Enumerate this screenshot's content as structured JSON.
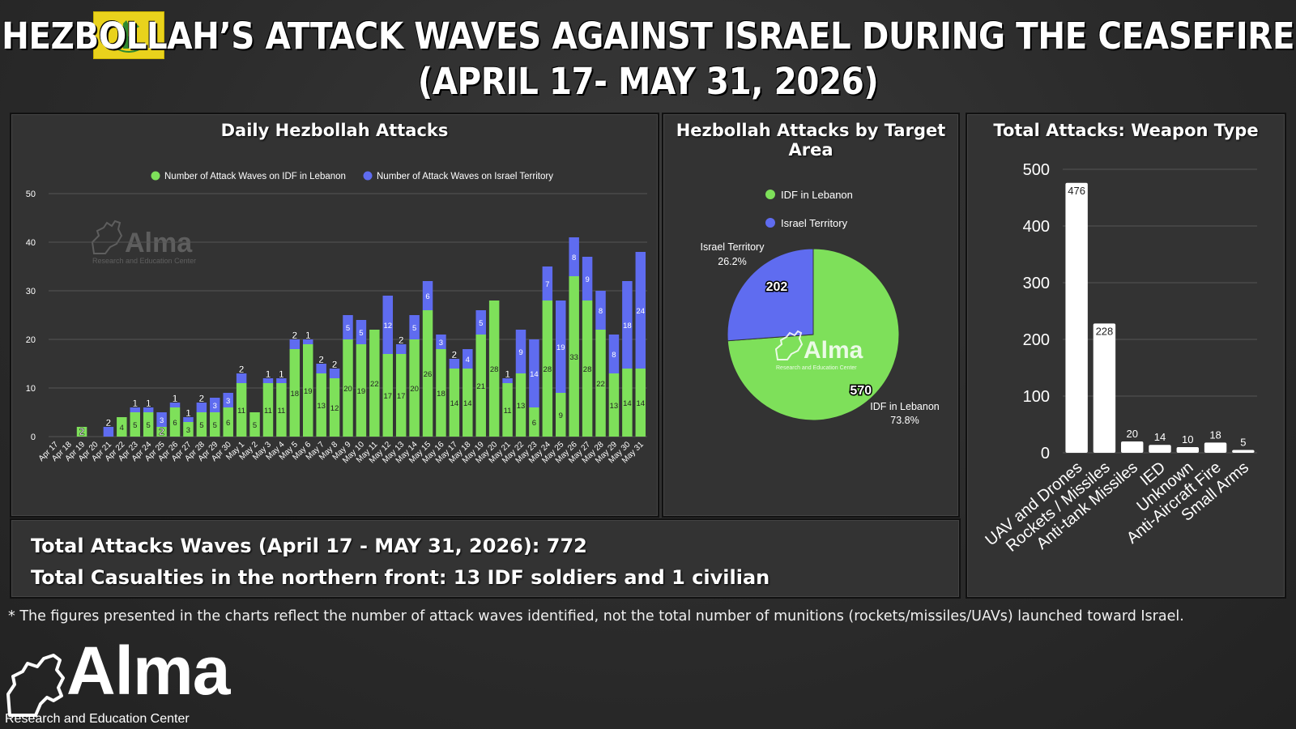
{
  "header": {
    "title_line1": "HEZBOLLAH’S ATTACK WAVES AGAINST ISRAEL DURING THE CEASEFIRE",
    "title_line2": "(APRIL 17- MAY 31, 2026)"
  },
  "colors": {
    "green": "#7ee05a",
    "blue": "#5f6cf0",
    "white": "#ffffff",
    "flag_yellow": "#e9d21c"
  },
  "panels": {
    "daily_title": "Daily Hezbollah Attacks",
    "target_title": "Hezbollah Attacks by Target Area",
    "weapon_title": "Total Attacks: Weapon Type"
  },
  "watermark": {
    "name": "Alma",
    "subtitle": "Research and Education Center"
  },
  "chart_data": [
    {
      "type": "bar",
      "title": "Daily Hezbollah Attacks",
      "stacked": true,
      "categories": [
        "Apr 17",
        "Apr 18",
        "Apr 19",
        "Apr 20",
        "Apr 21",
        "Apr 22",
        "Apr 23",
        "Apr 24",
        "Apr 25",
        "Apr 26",
        "Apr 27",
        "Apr 28",
        "Apr 29",
        "Apr 30",
        "May 1",
        "May 2",
        "May 3",
        "May 4",
        "May 5",
        "May 6",
        "May 7",
        "May 8",
        "May 9",
        "May 10",
        "May 11",
        "May 12",
        "May 13",
        "May 14",
        "May 15",
        "May 16",
        "May 17",
        "May 18",
        "May 19",
        "May 20",
        "May 21",
        "May 22",
        "May 23",
        "May 24",
        "May 25",
        "May 26",
        "May 27",
        "May 28",
        "May 29",
        "May 30",
        "May 31"
      ],
      "series": [
        {
          "name": "Number of Attack Waves on IDF in Lebanon",
          "color": "#7ee05a",
          "values": [
            0,
            0,
            2,
            0,
            0,
            4,
            5,
            5,
            2,
            6,
            3,
            5,
            5,
            6,
            11,
            5,
            11,
            11,
            18,
            19,
            13,
            12,
            20,
            19,
            22,
            17,
            17,
            20,
            26,
            18,
            14,
            14,
            21,
            28,
            11,
            13,
            6,
            28,
            9,
            33,
            28,
            22,
            13,
            14,
            14
          ]
        },
        {
          "name": "Number of Attack Waves on Israel Territory",
          "color": "#5f6cf0",
          "values": [
            0,
            0,
            0,
            0,
            2,
            0,
            1,
            1,
            3,
            1,
            1,
            2,
            3,
            3,
            2,
            0,
            1,
            1,
            2,
            1,
            2,
            2,
            5,
            5,
            0,
            12,
            2,
            5,
            6,
            3,
            2,
            4,
            5,
            0,
            1,
            9,
            14,
            7,
            19,
            8,
            9,
            8,
            8,
            18,
            24
          ]
        }
      ],
      "ylim": [
        0,
        50
      ],
      "yticks": [
        0,
        10,
        20,
        30,
        40,
        50
      ],
      "grid": true,
      "legend": "top"
    },
    {
      "type": "pie",
      "title": "Hezbollah Attacks by Target Area",
      "slices": [
        {
          "label": "IDF in Lebanon",
          "value": 570,
          "percent": "73.8%",
          "color": "#7ee05a"
        },
        {
          "label": "Israel Territory",
          "value": 202,
          "percent": "26.2%",
          "color": "#5f6cf0"
        }
      ],
      "legend": "top"
    },
    {
      "type": "bar",
      "title": "Total Attacks: Weapon Type",
      "categories": [
        "UAV and Drones",
        "Rockets / Missiles",
        "Anti-tank Missiles",
        "IED",
        "Unknown",
        "Anti-Aircraft Fire",
        "Small Arms"
      ],
      "values": [
        476,
        228,
        20,
        14,
        10,
        18,
        5
      ],
      "ylim": [
        0,
        500
      ],
      "yticks": [
        0,
        100,
        200,
        300,
        400,
        500
      ],
      "grid": true
    }
  ],
  "totals": {
    "line1": "Total Attacks Waves (April 17 - MAY 31, 2026): 772",
    "line2": "Total Casualties in the northern front: 13 IDF soldiers and 1 civilian"
  },
  "footnote": "* The figures presented in the charts reflect the number of attack waves identified, not the total number of munitions (rockets/missiles/UAVs) launched toward Israel.",
  "logo": {
    "name": "Alma",
    "subtitle": "Research and Education Center"
  }
}
